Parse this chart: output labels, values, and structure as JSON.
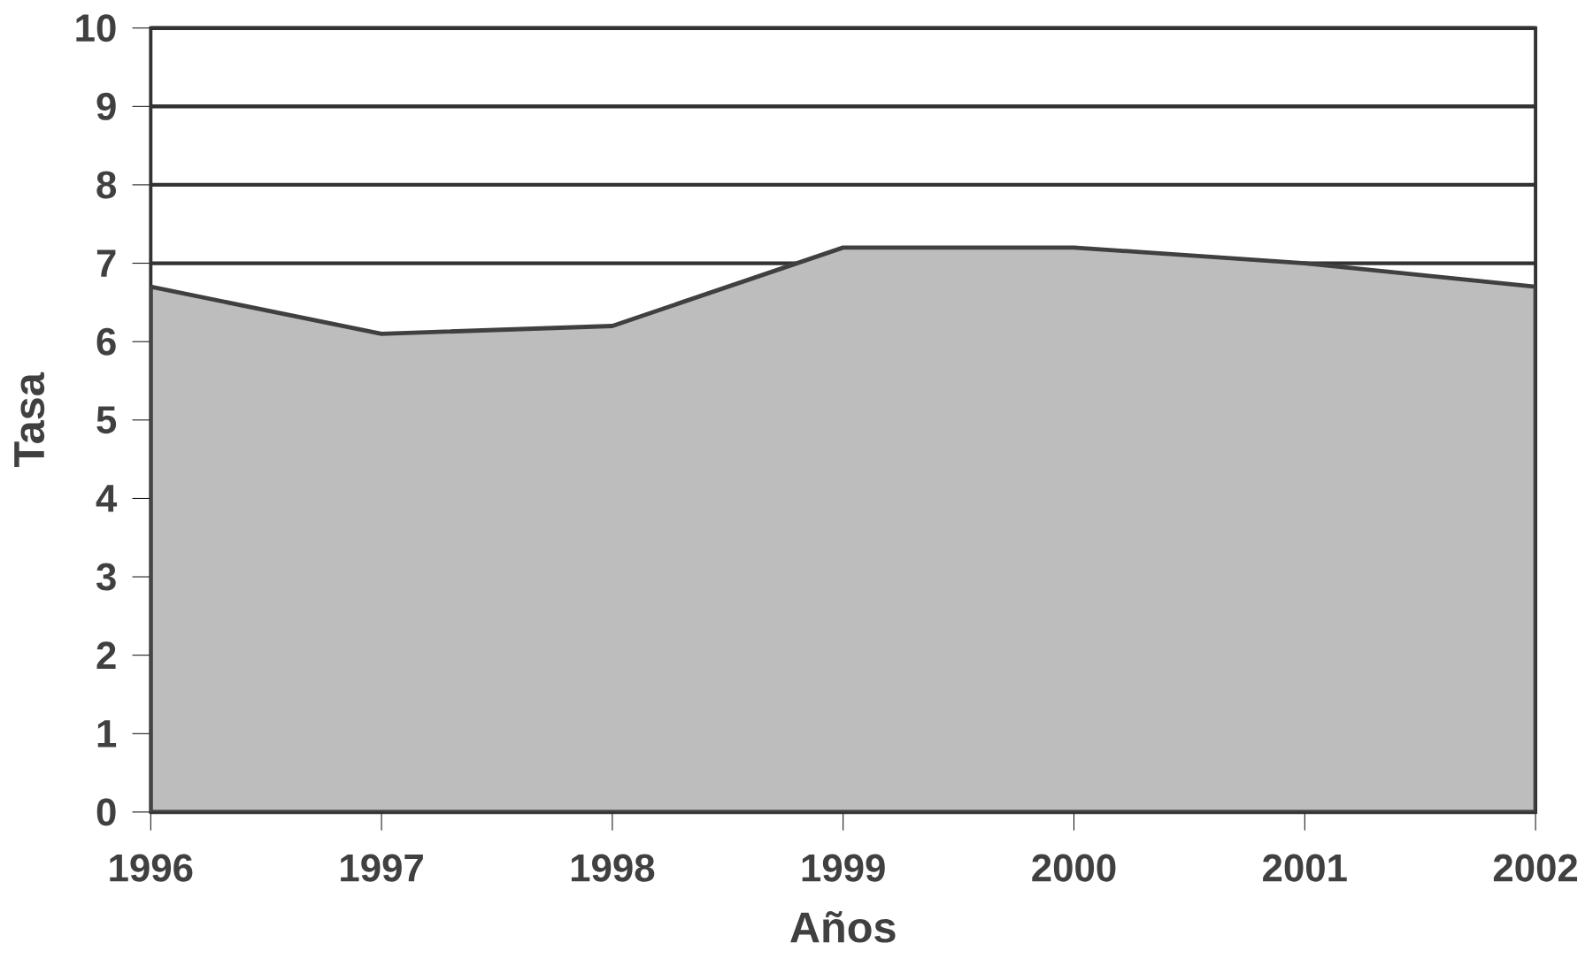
{
  "chart_data": {
    "type": "area",
    "xlabel": "Años",
    "ylabel": "Tasa",
    "categories": [
      "1996",
      "1997",
      "1998",
      "1999",
      "2000",
      "2001",
      "2002"
    ],
    "series": [
      {
        "color": "#bdbdbd",
        "values": [
          6.7,
          6.1,
          6.2,
          7.2,
          7.2,
          7.0,
          6.7
        ]
      }
    ],
    "ylim": [
      0,
      10
    ],
    "yticks": [
      0,
      1,
      2,
      3,
      4,
      5,
      6,
      7,
      8,
      9,
      10
    ],
    "grid": "y"
  }
}
